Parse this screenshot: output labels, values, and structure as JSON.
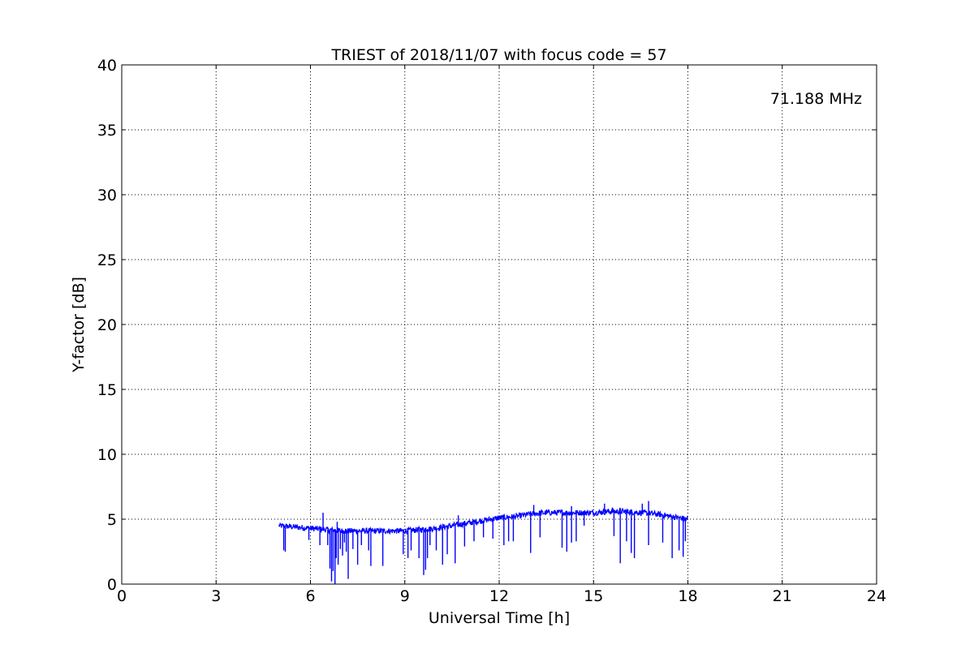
{
  "chart_data": {
    "type": "line",
    "title": "TRIEST of 2018/11/07 with focus code = 57",
    "xlabel": "Universal Time [h]",
    "ylabel": "Y-factor [dB]",
    "xlim": [
      0,
      24
    ],
    "ylim": [
      0,
      40
    ],
    "xticks": [
      0,
      3,
      6,
      9,
      12,
      15,
      18,
      21,
      24
    ],
    "yticks": [
      0,
      5,
      10,
      15,
      20,
      25,
      30,
      35,
      40
    ],
    "grid": true,
    "annotation": "71.188 MHz",
    "colors": {
      "series": "#0000ff",
      "annotation": "#0000ff",
      "grid": "#000000"
    },
    "series": [
      {
        "x": [
          5.0,
          5.5,
          6.0,
          6.5,
          7.0,
          7.5,
          8.0,
          8.5,
          9.0,
          9.5,
          10.0,
          10.5,
          11.0,
          11.5,
          12.0,
          12.5,
          13.0,
          13.5,
          14.0,
          14.5,
          15.0,
          15.5,
          16.0,
          16.5,
          17.0,
          17.5,
          18.0
        ],
        "y": [
          4.5,
          4.4,
          4.3,
          4.2,
          4.1,
          4.1,
          4.1,
          4.1,
          4.1,
          4.2,
          4.3,
          4.5,
          4.7,
          4.9,
          5.1,
          5.2,
          5.4,
          5.5,
          5.5,
          5.5,
          5.5,
          5.6,
          5.6,
          5.5,
          5.4,
          5.2,
          5.0
        ]
      }
    ],
    "dips": [
      {
        "x": 5.15,
        "y": 2.6
      },
      {
        "x": 5.2,
        "y": 2.5
      },
      {
        "x": 5.95,
        "y": 3.4
      },
      {
        "x": 6.3,
        "y": 3.0
      },
      {
        "x": 6.55,
        "y": 3.0
      },
      {
        "x": 6.62,
        "y": 1.2
      },
      {
        "x": 6.67,
        "y": 0.2
      },
      {
        "x": 6.72,
        "y": 1.0
      },
      {
        "x": 6.78,
        "y": 0.0
      },
      {
        "x": 6.82,
        "y": 2.0
      },
      {
        "x": 6.88,
        "y": 1.5
      },
      {
        "x": 6.95,
        "y": 2.7
      },
      {
        "x": 7.02,
        "y": 2.2
      },
      {
        "x": 7.08,
        "y": 3.2
      },
      {
        "x": 7.14,
        "y": 2.5
      },
      {
        "x": 7.2,
        "y": 0.4
      },
      {
        "x": 7.35,
        "y": 2.7
      },
      {
        "x": 7.5,
        "y": 1.5
      },
      {
        "x": 7.62,
        "y": 3.0
      },
      {
        "x": 7.85,
        "y": 2.6
      },
      {
        "x": 7.92,
        "y": 1.4
      },
      {
        "x": 8.3,
        "y": 1.4
      },
      {
        "x": 8.95,
        "y": 2.3
      },
      {
        "x": 9.1,
        "y": 2.0
      },
      {
        "x": 9.2,
        "y": 2.6
      },
      {
        "x": 9.45,
        "y": 2.0
      },
      {
        "x": 9.6,
        "y": 0.7
      },
      {
        "x": 9.66,
        "y": 1.1
      },
      {
        "x": 9.72,
        "y": 2.0
      },
      {
        "x": 9.8,
        "y": 3.0
      },
      {
        "x": 10.0,
        "y": 2.6
      },
      {
        "x": 10.2,
        "y": 1.5
      },
      {
        "x": 10.35,
        "y": 2.3
      },
      {
        "x": 10.6,
        "y": 1.6
      },
      {
        "x": 10.9,
        "y": 2.9
      },
      {
        "x": 11.2,
        "y": 3.3
      },
      {
        "x": 11.5,
        "y": 3.6
      },
      {
        "x": 11.8,
        "y": 3.5
      },
      {
        "x": 12.15,
        "y": 3.0
      },
      {
        "x": 12.3,
        "y": 3.3
      },
      {
        "x": 12.45,
        "y": 3.3
      },
      {
        "x": 13.0,
        "y": 2.4
      },
      {
        "x": 13.3,
        "y": 3.6
      },
      {
        "x": 14.0,
        "y": 2.8
      },
      {
        "x": 14.15,
        "y": 2.5
      },
      {
        "x": 14.3,
        "y": 3.2
      },
      {
        "x": 14.45,
        "y": 3.3
      },
      {
        "x": 14.7,
        "y": 4.5
      },
      {
        "x": 15.65,
        "y": 3.7
      },
      {
        "x": 15.85,
        "y": 1.6
      },
      {
        "x": 16.05,
        "y": 3.3
      },
      {
        "x": 16.2,
        "y": 2.4
      },
      {
        "x": 16.3,
        "y": 2.0
      },
      {
        "x": 16.75,
        "y": 3.0
      },
      {
        "x": 17.2,
        "y": 3.2
      },
      {
        "x": 17.5,
        "y": 2.0
      },
      {
        "x": 17.72,
        "y": 2.6
      },
      {
        "x": 17.85,
        "y": 2.1
      },
      {
        "x": 17.92,
        "y": 3.3
      }
    ],
    "spikes": [
      {
        "x": 6.4,
        "y": 5.5
      },
      {
        "x": 6.85,
        "y": 4.8
      },
      {
        "x": 10.7,
        "y": 5.3
      },
      {
        "x": 13.1,
        "y": 6.1
      },
      {
        "x": 14.3,
        "y": 6.0
      },
      {
        "x": 15.35,
        "y": 6.2
      },
      {
        "x": 16.55,
        "y": 6.2
      },
      {
        "x": 16.75,
        "y": 6.4
      },
      {
        "x": 15.6,
        "y": 5.9
      }
    ]
  }
}
